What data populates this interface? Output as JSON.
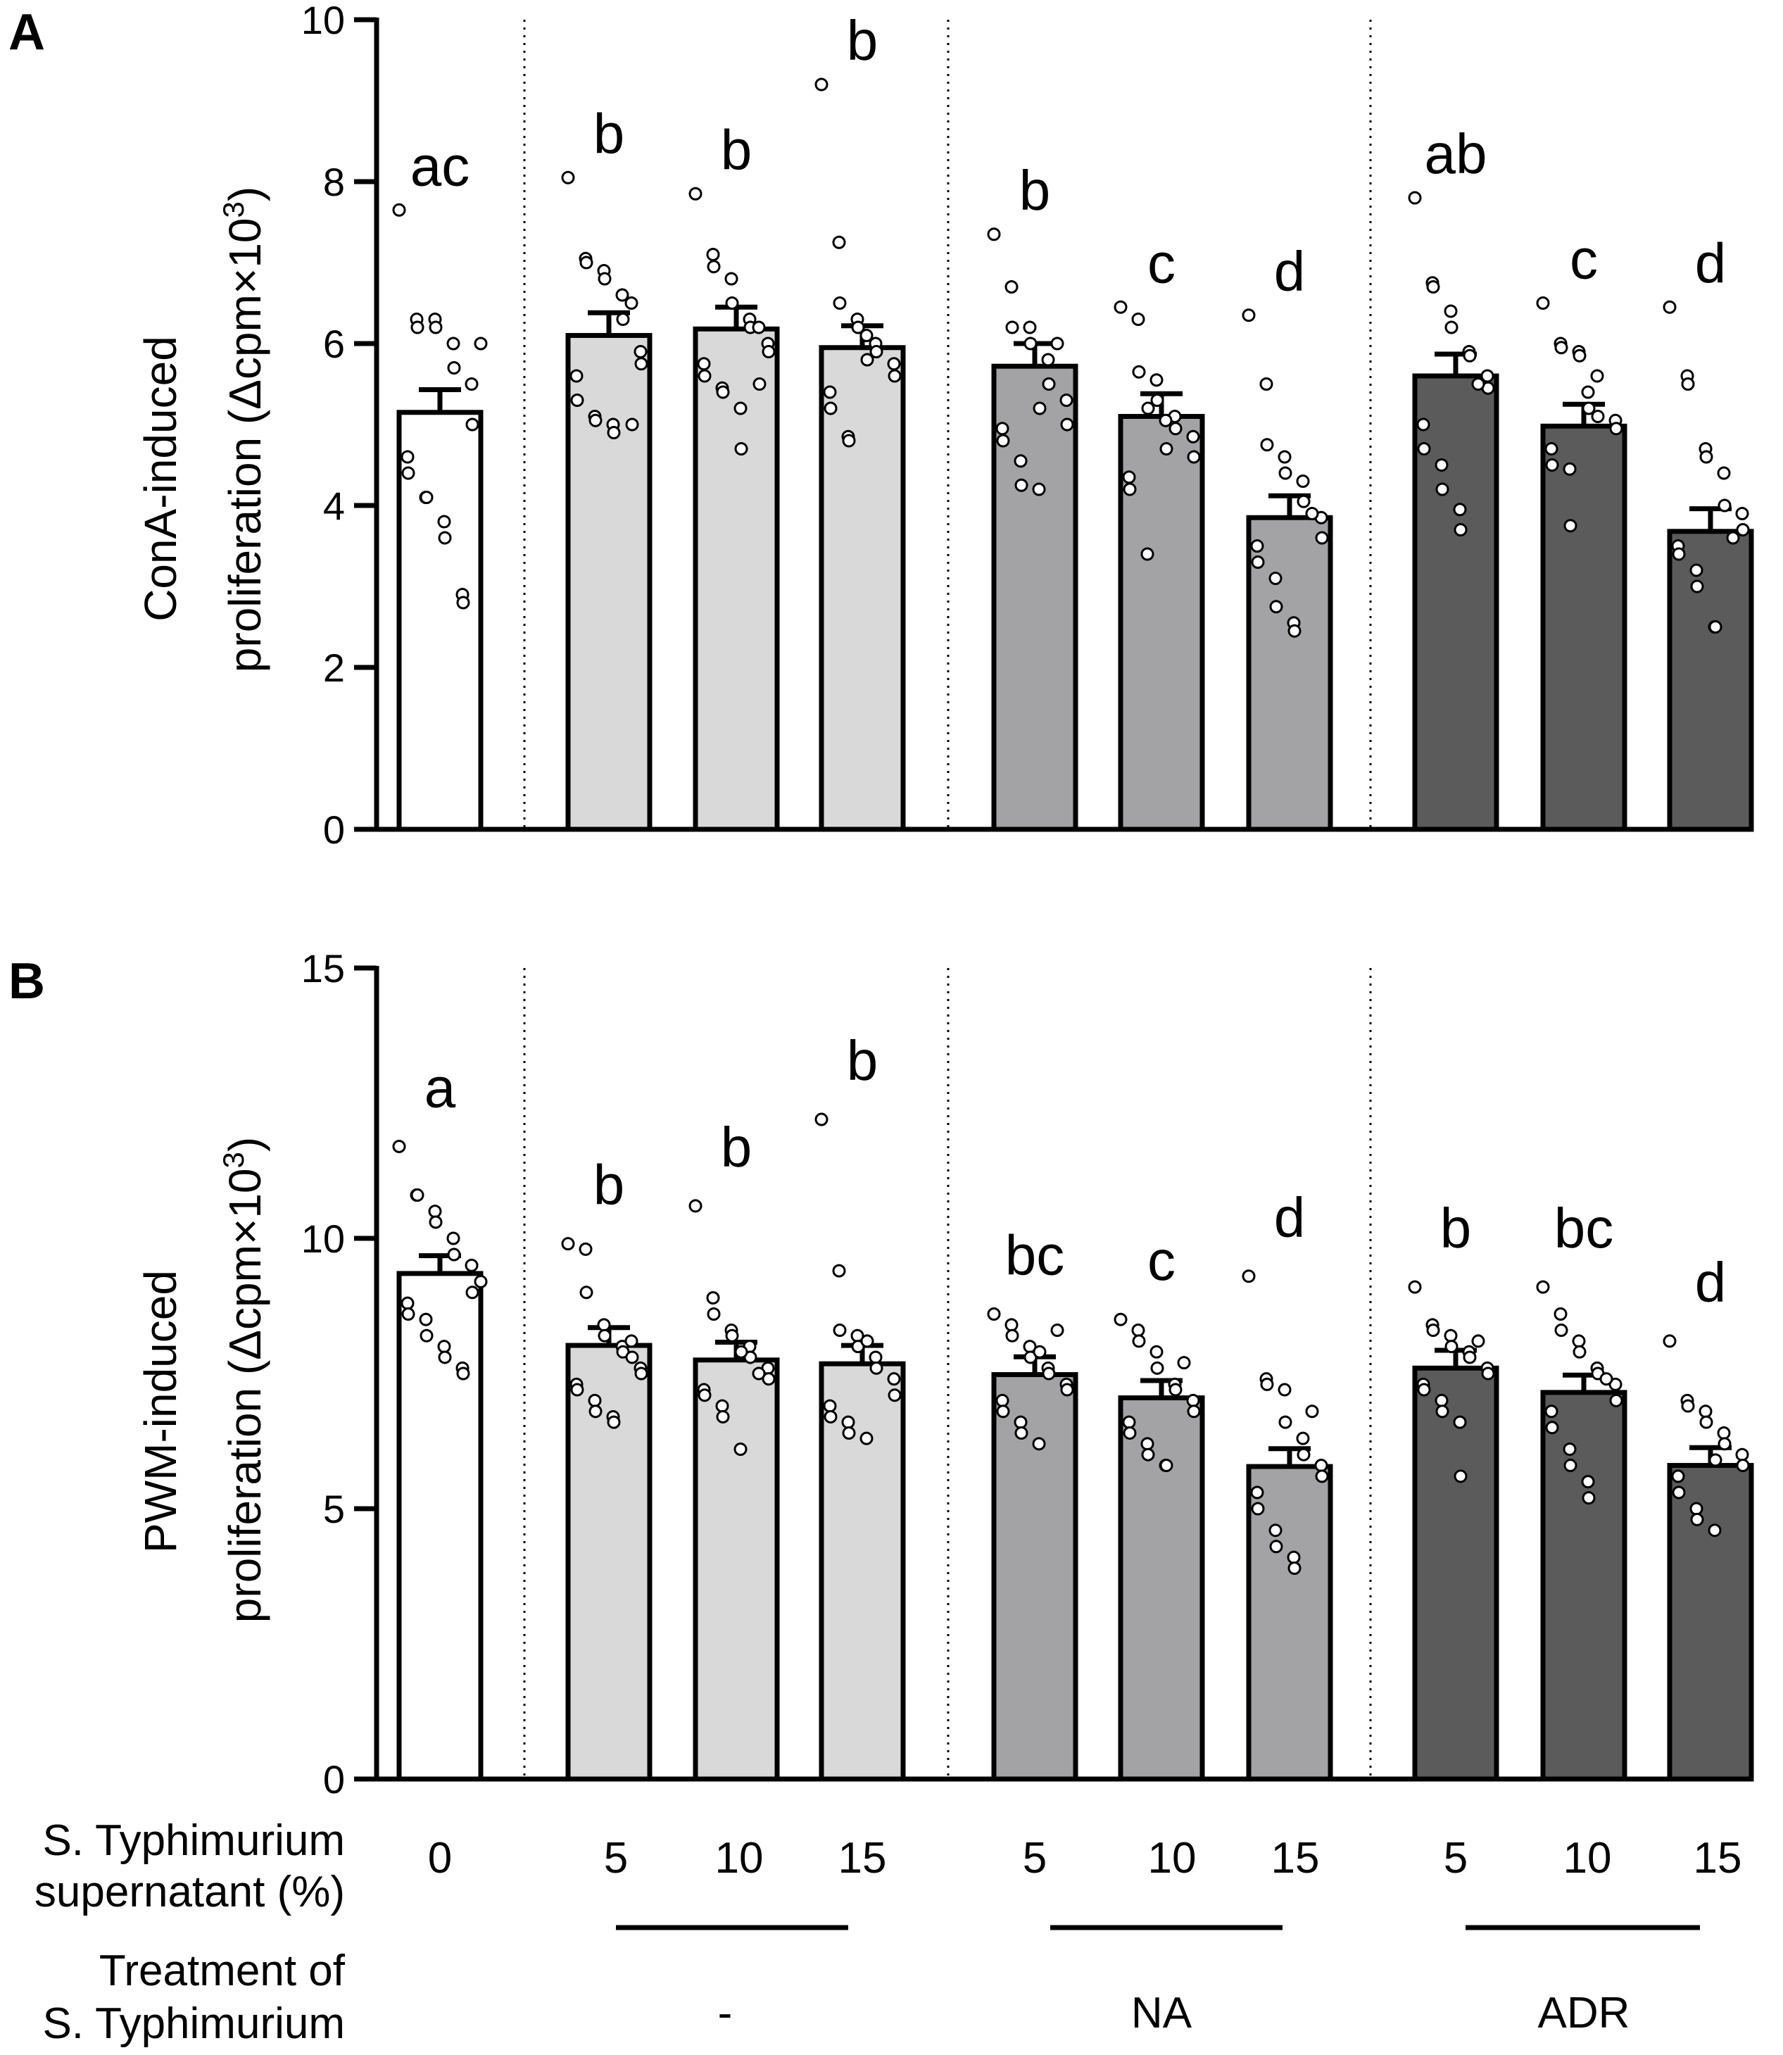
{
  "chart_data": [
    {
      "type": "bar",
      "panel": "A",
      "ylabel_line1": "ConA-induced",
      "ylabel_line2": "proliferation (Δcpm×10",
      "ylabel_sup": "3",
      "ylabel_close": ")",
      "ylim": [
        0,
        10
      ],
      "ticks": [
        "0",
        "2",
        "4",
        "6",
        "8",
        "10"
      ],
      "categories": [
        "0",
        "5",
        "10",
        "15",
        "5",
        "10",
        "15",
        "5",
        "10",
        "15"
      ],
      "groups": [
        "",
        "-",
        "-",
        "-",
        "NA",
        "NA",
        "NA",
        "ADR",
        "ADR",
        "ADR"
      ],
      "values": [
        5.15,
        6.1,
        6.18,
        5.95,
        5.72,
        5.1,
        3.85,
        5.6,
        4.98,
        3.68
      ],
      "errors": [
        0.28,
        0.28,
        0.27,
        0.27,
        0.28,
        0.28,
        0.27,
        0.27,
        0.27,
        0.28
      ],
      "letters": [
        "ac",
        "b",
        "b",
        "b",
        "b",
        "c",
        "d",
        "ab",
        "c",
        "d"
      ],
      "points": [
        [
          7.65,
          6.3,
          6.2,
          6.3,
          6.2,
          6.0,
          5.7,
          5.5,
          5.0,
          4.6,
          4.4,
          4.1,
          4.1,
          3.8,
          3.6,
          2.9,
          2.8,
          6.0
        ],
        [
          8.05,
          7.05,
          7.0,
          6.9,
          6.8,
          6.6,
          6.3,
          5.9,
          5.75,
          5.6,
          5.3,
          5.1,
          5.05,
          5.0,
          4.9,
          6.5,
          5.0
        ],
        [
          7.85,
          7.1,
          6.95,
          6.8,
          6.5,
          6.3,
          6.2,
          6.0,
          5.9,
          5.75,
          5.6,
          5.45,
          5.4,
          5.2,
          4.7,
          6.2,
          5.5
        ],
        [
          9.2,
          7.25,
          6.5,
          6.3,
          6.2,
          6.0,
          5.9,
          5.75,
          5.6,
          5.4,
          5.2,
          4.85,
          4.8,
          6.1,
          5.8
        ],
        [
          7.35,
          6.7,
          6.2,
          6.2,
          6.0,
          5.8,
          5.5,
          5.3,
          5.0,
          4.95,
          4.8,
          4.55,
          4.25,
          4.2,
          5.2,
          6.0
        ],
        [
          6.45,
          6.3,
          5.65,
          5.55,
          5.3,
          5.1,
          4.95,
          4.85,
          4.6,
          4.35,
          4.2,
          3.4,
          5.2,
          5.05,
          4.7
        ],
        [
          6.35,
          5.5,
          4.75,
          4.6,
          4.4,
          4.3,
          4.05,
          3.85,
          3.6,
          3.5,
          3.3,
          3.1,
          2.75,
          2.55,
          2.45,
          3.9
        ],
        [
          7.8,
          6.75,
          6.7,
          6.4,
          6.2,
          5.9,
          5.85,
          5.6,
          5.45,
          5.0,
          4.7,
          4.5,
          4.2,
          3.95,
          3.7,
          5.5
        ],
        [
          6.5,
          6.0,
          5.95,
          5.9,
          5.85,
          5.6,
          5.1,
          5.05,
          4.95,
          4.7,
          4.5,
          4.45,
          3.75,
          5.4,
          5.2
        ],
        [
          6.45,
          5.6,
          5.5,
          4.7,
          4.6,
          4.4,
          4.0,
          3.9,
          3.7,
          3.5,
          3.4,
          3.2,
          3.0,
          2.5,
          2.5,
          3.6
        ]
      ]
    },
    {
      "type": "bar",
      "panel": "B",
      "ylabel_line1": "PWM-induced",
      "ylabel_line2": "proliferation (Δcpm×10",
      "ylabel_sup": "3",
      "ylabel_close": ")",
      "ylim": [
        0,
        15
      ],
      "ticks": [
        "0",
        "5",
        "10",
        "15"
      ],
      "categories": [
        "0",
        "5",
        "10",
        "15",
        "5",
        "10",
        "15",
        "5",
        "10",
        "15"
      ],
      "groups": [
        "",
        "-",
        "-",
        "-",
        "NA",
        "NA",
        "NA",
        "ADR",
        "ADR",
        "ADR"
      ],
      "values": [
        9.35,
        8.02,
        7.75,
        7.68,
        7.48,
        7.05,
        5.78,
        7.6,
        7.15,
        5.8
      ],
      "errors": [
        0.33,
        0.33,
        0.33,
        0.34,
        0.33,
        0.32,
        0.33,
        0.33,
        0.32,
        0.33
      ],
      "letters": [
        "a",
        "b",
        "b",
        "b",
        "bc",
        "c",
        "d",
        "b",
        "bc",
        "d"
      ],
      "points": [
        [
          11.7,
          10.8,
          10.8,
          10.5,
          10.3,
          10.0,
          9.7,
          9.5,
          9.0,
          8.8,
          8.6,
          8.5,
          8.2,
          8.0,
          7.8,
          7.6,
          7.5,
          9.2
        ],
        [
          9.9,
          9.8,
          9.0,
          8.4,
          8.2,
          8.0,
          7.9,
          7.6,
          7.5,
          7.3,
          7.2,
          7.0,
          6.8,
          6.7,
          6.6,
          8.1,
          7.8
        ],
        [
          10.6,
          8.9,
          8.6,
          8.3,
          8.2,
          8.0,
          7.8,
          7.6,
          7.4,
          7.2,
          7.1,
          6.9,
          6.7,
          6.1,
          7.9,
          7.5
        ],
        [
          12.2,
          9.4,
          8.3,
          8.2,
          8.0,
          7.8,
          7.6,
          7.4,
          7.1,
          6.9,
          6.7,
          6.6,
          6.4,
          6.3,
          8.1
        ],
        [
          8.6,
          8.4,
          8.2,
          8.0,
          7.8,
          7.6,
          7.5,
          7.3,
          7.2,
          7.0,
          6.8,
          6.6,
          6.4,
          6.2,
          7.9,
          8.3
        ],
        [
          8.5,
          8.3,
          8.1,
          7.9,
          7.6,
          7.3,
          7.2,
          7.0,
          6.8,
          6.6,
          6.4,
          6.2,
          6.0,
          5.8,
          5.8,
          7.7
        ],
        [
          9.3,
          7.4,
          7.3,
          7.2,
          6.6,
          6.3,
          6.0,
          5.8,
          5.6,
          5.3,
          5.0,
          4.6,
          4.3,
          4.1,
          3.9,
          6.8
        ],
        [
          9.1,
          8.4,
          8.3,
          8.2,
          8.0,
          7.9,
          7.8,
          7.6,
          7.5,
          7.3,
          7.2,
          7.0,
          6.8,
          6.6,
          5.6,
          8.1
        ],
        [
          9.1,
          8.6,
          8.3,
          8.1,
          7.9,
          7.6,
          7.5,
          7.3,
          7.0,
          6.8,
          6.5,
          6.1,
          5.8,
          5.5,
          5.2,
          7.4
        ],
        [
          8.1,
          7.0,
          6.9,
          6.8,
          6.6,
          6.4,
          6.2,
          6.0,
          5.8,
          5.6,
          5.3,
          5.0,
          4.8,
          4.6,
          5.9
        ]
      ]
    }
  ],
  "x_row_label_line1": "S. Typhimurium",
  "x_row_label_line2": "supernatant (%)",
  "treatment_label_line1": "Treatment of",
  "treatment_label_line2": "S. Typhimurium",
  "treatment_groups": [
    "-",
    "NA",
    "ADR"
  ],
  "colors": {
    "control": "#ffffff",
    "none": "#d9d9d9",
    "na": "#a3a3a6",
    "adr": "#5b5b5b",
    "line": "#000000"
  }
}
